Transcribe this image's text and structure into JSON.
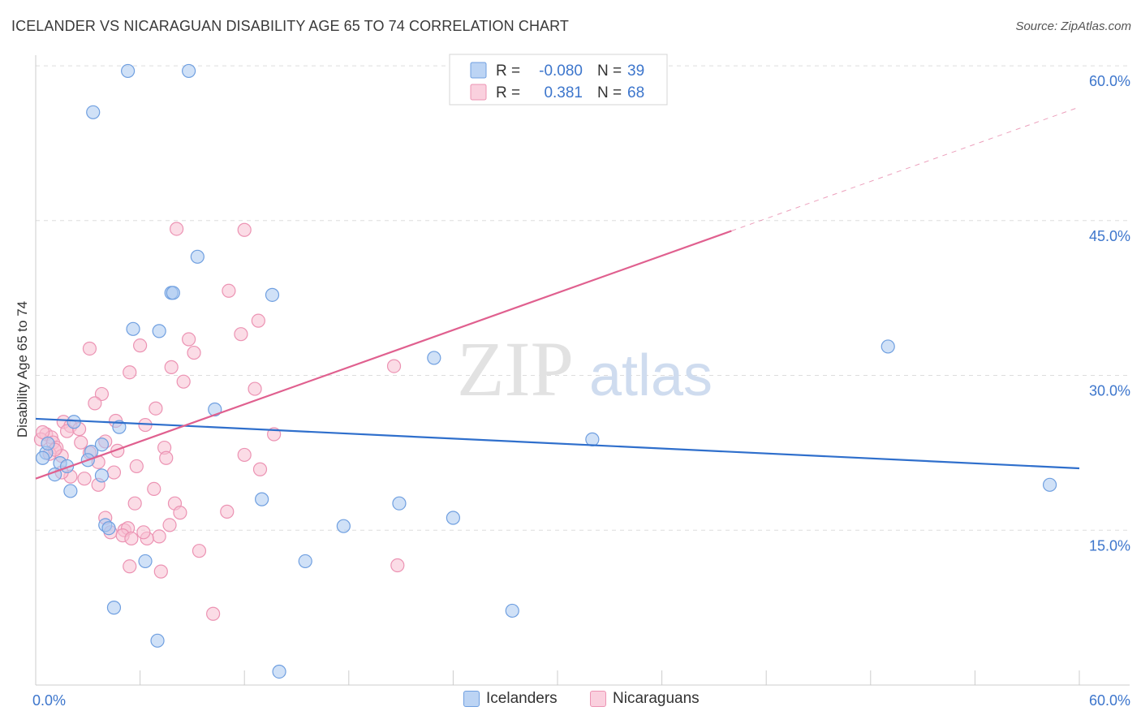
{
  "chart_data": {
    "type": "scatter",
    "title": "ICELANDER VS NICARAGUAN DISABILITY AGE 65 TO 74 CORRELATION CHART",
    "source": "Source: ZipAtlas.com",
    "xlabel": "",
    "ylabel": "Disability Age 65 to 74",
    "xlim": [
      0,
      60
    ],
    "ylim": [
      0,
      61.5
    ],
    "x_tick_labels": [
      "0.0%",
      "60.0%"
    ],
    "y_tick_values": [
      15,
      30,
      45,
      60
    ],
    "y_tick_labels": [
      "15.0%",
      "30.0%",
      "45.0%",
      "60.0%"
    ],
    "watermark": "ZIPatlas",
    "colors": {
      "icelanders_fill": "#a9c8f0",
      "icelanders_stroke": "#6f9fe0",
      "icelanders_line": "#2f6fcc",
      "nicaraguans_fill": "#f7bfd1",
      "nicaraguans_stroke": "#ec93b3",
      "nicaraguans_line": "#e0608f",
      "tick_label": "#3d76cc",
      "grid": "#dddddd"
    },
    "legend": {
      "rows": [
        {
          "r_label": "R =",
          "r_value": "-0.080",
          "n_label": "N =",
          "n_value": "39"
        },
        {
          "r_label": "R =",
          "r_value": "0.381",
          "n_label": "N =",
          "n_value": "68"
        }
      ]
    },
    "series": [
      {
        "name": "Icelanders",
        "points": [
          [
            5.3,
            59.5
          ],
          [
            8.8,
            59.5
          ],
          [
            3.3,
            55.5
          ],
          [
            9.3,
            41.5
          ],
          [
            7.8,
            38.0
          ],
          [
            7.9,
            38.0
          ],
          [
            13.6,
            37.8
          ],
          [
            5.6,
            34.5
          ],
          [
            7.1,
            34.3
          ],
          [
            22.9,
            31.7
          ],
          [
            49.0,
            32.8
          ],
          [
            10.3,
            26.7
          ],
          [
            2.2,
            25.5
          ],
          [
            4.8,
            25.0
          ],
          [
            32.0,
            23.8
          ],
          [
            3.8,
            23.3
          ],
          [
            0.6,
            22.5
          ],
          [
            0.4,
            22.0
          ],
          [
            1.4,
            21.5
          ],
          [
            3.2,
            22.6
          ],
          [
            3.0,
            21.8
          ],
          [
            1.8,
            21.2
          ],
          [
            1.1,
            20.4
          ],
          [
            3.8,
            20.3
          ],
          [
            2.0,
            18.8
          ],
          [
            13.0,
            18.0
          ],
          [
            20.9,
            17.6
          ],
          [
            24.0,
            16.2
          ],
          [
            4.0,
            15.5
          ],
          [
            4.2,
            15.2
          ],
          [
            17.7,
            15.4
          ],
          [
            58.3,
            19.4
          ],
          [
            6.3,
            12.0
          ],
          [
            15.5,
            12.0
          ],
          [
            4.5,
            7.5
          ],
          [
            27.4,
            7.2
          ],
          [
            7.0,
            4.3
          ],
          [
            14.0,
            1.3
          ],
          [
            0.7,
            23.4
          ]
        ]
      },
      {
        "name": "Nicaraguans",
        "points": [
          [
            8.1,
            44.2
          ],
          [
            12.0,
            44.1
          ],
          [
            11.1,
            38.2
          ],
          [
            12.8,
            35.3
          ],
          [
            11.8,
            34.0
          ],
          [
            8.8,
            33.5
          ],
          [
            3.1,
            32.6
          ],
          [
            6.0,
            32.9
          ],
          [
            9.1,
            32.2
          ],
          [
            7.8,
            30.8
          ],
          [
            5.4,
            30.3
          ],
          [
            20.6,
            30.9
          ],
          [
            8.5,
            29.4
          ],
          [
            12.6,
            28.7
          ],
          [
            3.8,
            28.2
          ],
          [
            3.4,
            27.3
          ],
          [
            6.9,
            26.8
          ],
          [
            4.6,
            25.6
          ],
          [
            6.3,
            25.2
          ],
          [
            1.6,
            25.5
          ],
          [
            2.0,
            25.1
          ],
          [
            1.8,
            24.6
          ],
          [
            13.7,
            24.3
          ],
          [
            0.6,
            24.3
          ],
          [
            0.9,
            24.0
          ],
          [
            0.3,
            23.8
          ],
          [
            1.0,
            23.5
          ],
          [
            4.0,
            23.6
          ],
          [
            2.6,
            23.5
          ],
          [
            7.4,
            23.0
          ],
          [
            4.7,
            22.7
          ],
          [
            1.2,
            23.0
          ],
          [
            0.8,
            22.4
          ],
          [
            3.1,
            22.5
          ],
          [
            1.5,
            22.2
          ],
          [
            12.0,
            22.3
          ],
          [
            3.6,
            21.6
          ],
          [
            7.5,
            22.0
          ],
          [
            5.8,
            21.2
          ],
          [
            12.9,
            20.9
          ],
          [
            4.5,
            20.6
          ],
          [
            2.0,
            20.2
          ],
          [
            1.5,
            20.6
          ],
          [
            2.8,
            20.0
          ],
          [
            3.6,
            19.4
          ],
          [
            6.8,
            19.0
          ],
          [
            5.7,
            17.6
          ],
          [
            8.0,
            17.6
          ],
          [
            8.3,
            16.7
          ],
          [
            11.0,
            16.8
          ],
          [
            4.0,
            16.2
          ],
          [
            7.7,
            15.5
          ],
          [
            5.1,
            15.0
          ],
          [
            5.3,
            15.2
          ],
          [
            4.3,
            14.8
          ],
          [
            7.1,
            14.4
          ],
          [
            6.4,
            14.2
          ],
          [
            5.0,
            14.5
          ],
          [
            6.2,
            14.8
          ],
          [
            5.5,
            14.2
          ],
          [
            9.4,
            13.0
          ],
          [
            5.4,
            11.5
          ],
          [
            7.2,
            11.0
          ],
          [
            20.8,
            11.6
          ],
          [
            10.2,
            6.9
          ],
          [
            0.4,
            24.5
          ],
          [
            2.5,
            24.8
          ],
          [
            1.1,
            22.8
          ]
        ]
      }
    ],
    "trendlines": [
      {
        "name": "Icelanders",
        "x0": 0,
        "y0": 25.8,
        "x1": 60,
        "y1": 21.0,
        "style": "solid"
      },
      {
        "name": "Nicaraguans",
        "x0": 0,
        "y0": 20.0,
        "x1": 40.0,
        "y1": 44.0,
        "style": "solid"
      },
      {
        "name": "Nicaraguans",
        "x0": 40.0,
        "y0": 44.0,
        "x1": 60,
        "y1": 56.0,
        "style": "dashed"
      }
    ]
  }
}
